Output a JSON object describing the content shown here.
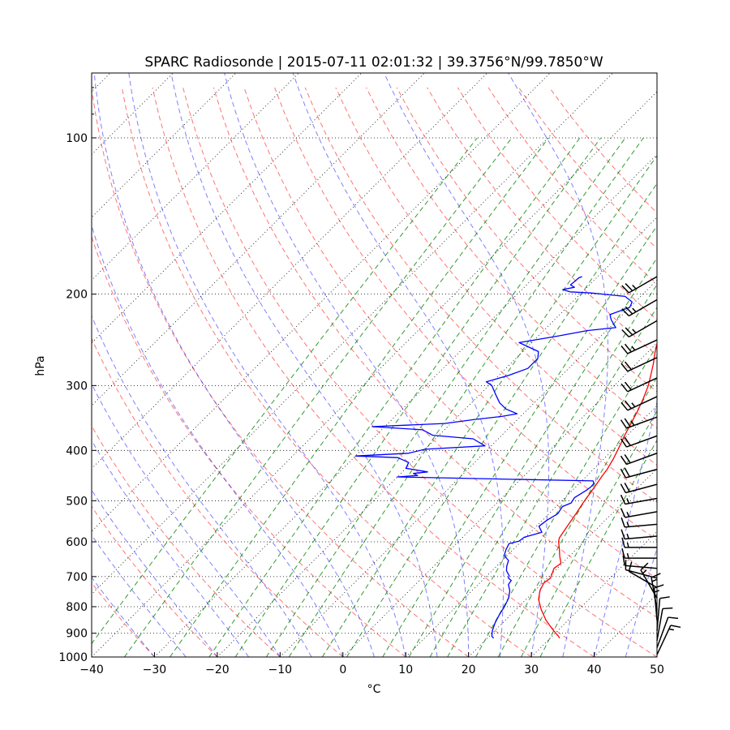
{
  "chart_data": {
    "type": "skew-t",
    "title": "SPARC Radiosonde | 2015-07-11 02:01:32 | 39.3756°N/99.7850°W",
    "xlabel": "°C",
    "ylabel": "hPa",
    "xlim": [
      -40,
      50
    ],
    "ylim_hpa": [
      1000,
      75
    ],
    "x_ticks": [
      "−40",
      "−30",
      "−20",
      "−10",
      "0",
      "10",
      "20",
      "30",
      "40",
      "50"
    ],
    "x_tick_values": [
      -40,
      -30,
      -20,
      -10,
      0,
      10,
      20,
      30,
      40,
      50
    ],
    "y_ticks": [
      "100",
      "200",
      "300",
      "400",
      "500",
      "600",
      "700",
      "800",
      "900",
      "1000"
    ],
    "y_tick_values": [
      100,
      200,
      300,
      400,
      500,
      600,
      700,
      800,
      900,
      1000
    ],
    "grid": "dotted isobars and skewed isotherms",
    "background_lines": {
      "dry_adiabats": "red dashed",
      "moist_adiabats": "blue dashed",
      "mixing_ratio": "green dashed"
    },
    "series": [
      {
        "name": "temperature",
        "color": "#ff0000",
        "points": [
          [
            31.5,
            920
          ],
          [
            31.0,
            912
          ],
          [
            29.0,
            885
          ],
          [
            26.5,
            850
          ],
          [
            24.0,
            810
          ],
          [
            22.0,
            775
          ],
          [
            20.8,
            745
          ],
          [
            20.2,
            720
          ],
          [
            20.5,
            705
          ],
          [
            20.0,
            690
          ],
          [
            19.5,
            675
          ],
          [
            19.8,
            660
          ],
          [
            18.5,
            640
          ],
          [
            17.3,
            620
          ],
          [
            16.0,
            600
          ],
          [
            15.5,
            590
          ],
          [
            15.2,
            575
          ],
          [
            14.8,
            555
          ],
          [
            14.3,
            530
          ],
          [
            13.7,
            505
          ],
          [
            13.2,
            480
          ],
          [
            12.8,
            462
          ],
          [
            12.5,
            450
          ],
          [
            12.2,
            435
          ],
          [
            11.5,
            415
          ],
          [
            10.6,
            395
          ],
          [
            9.6,
            375
          ],
          [
            8.7,
            355
          ],
          [
            7.7,
            335
          ],
          [
            6.7,
            318
          ],
          [
            5.4,
            300
          ],
          [
            4.0,
            285
          ],
          [
            2.7,
            272
          ],
          [
            1.3,
            260
          ],
          [
            0.0,
            248
          ],
          [
            -1.0,
            238
          ],
          [
            -1.5,
            230
          ],
          [
            -2.2,
            222
          ],
          [
            -3.2,
            215
          ],
          [
            -3.8,
            208
          ],
          [
            -4.5,
            202
          ],
          [
            -5.0,
            196
          ],
          [
            -5.8,
            192
          ],
          [
            -5.9,
            187
          ],
          [
            -6.3,
            185
          ]
        ]
      },
      {
        "name": "dewpoint",
        "color": "#0000ff",
        "points": [
          [
            21.0,
            920
          ],
          [
            20.4,
            912
          ],
          [
            19.6,
            890
          ],
          [
            18.8,
            860
          ],
          [
            18.2,
            830
          ],
          [
            17.7,
            800
          ],
          [
            17.0,
            770
          ],
          [
            16.0,
            745
          ],
          [
            14.8,
            725
          ],
          [
            14.6,
            712
          ],
          [
            13.8,
            705
          ],
          [
            13.5,
            697
          ],
          [
            12.3,
            682
          ],
          [
            11.6,
            668
          ],
          [
            11.0,
            652
          ],
          [
            9.5,
            637
          ],
          [
            8.9,
            622
          ],
          [
            8.4,
            605
          ],
          [
            9.6,
            598
          ],
          [
            9.8,
            588
          ],
          [
            11.8,
            575
          ],
          [
            10.4,
            560
          ],
          [
            10.7,
            545
          ],
          [
            11.4,
            530
          ],
          [
            11.0,
            513
          ],
          [
            11.8,
            505
          ],
          [
            11.5,
            493
          ],
          [
            12.2,
            478
          ],
          [
            12.4,
            470
          ],
          [
            12.3,
            463
          ],
          [
            11.8,
            458
          ],
          [
            -20.0,
            450
          ],
          [
            -17.0,
            447
          ],
          [
            -18.0,
            443
          ],
          [
            -16.0,
            440
          ],
          [
            -20.0,
            433
          ],
          [
            -20.5,
            422
          ],
          [
            -23.0,
            413
          ],
          [
            -30.0,
            410
          ],
          [
            -22.0,
            405
          ],
          [
            -20.0,
            398
          ],
          [
            -11.0,
            392
          ],
          [
            -14.0,
            380
          ],
          [
            -21.0,
            374
          ],
          [
            -23.5,
            365
          ],
          [
            -32.0,
            360
          ],
          [
            -21.0,
            355
          ],
          [
            -17.0,
            349
          ],
          [
            -13.0,
            344
          ],
          [
            -11.0,
            340
          ],
          [
            -13.5,
            333
          ],
          [
            -15.5,
            324
          ],
          [
            -17.5,
            312
          ],
          [
            -19.5,
            300
          ],
          [
            -21.0,
            295
          ],
          [
            -18.5,
            287
          ],
          [
            -16.5,
            278
          ],
          [
            -16.5,
            266
          ],
          [
            -17.5,
            258
          ],
          [
            -22.0,
            248
          ],
          [
            -17.0,
            241
          ],
          [
            -13.0,
            235
          ],
          [
            -9.0,
            232
          ],
          [
            -10.0,
            228
          ],
          [
            -11.0,
            224
          ],
          [
            -12.0,
            219
          ],
          [
            -10.0,
            212
          ],
          [
            -10.5,
            207
          ],
          [
            -12.5,
            202
          ],
          [
            -18.5,
            199
          ],
          [
            -22.0,
            198
          ],
          [
            -23.5,
            196
          ],
          [
            -22.0,
            194
          ],
          [
            -23.0,
            192
          ],
          [
            -22.8,
            186
          ],
          [
            -22.5,
            185
          ]
        ]
      }
    ],
    "wind_barbs": [
      {
        "p": 185,
        "kt": 25,
        "dir": 240
      },
      {
        "p": 205,
        "kt": 25,
        "dir": 240
      },
      {
        "p": 225,
        "kt": 25,
        "dir": 240
      },
      {
        "p": 245,
        "kt": 25,
        "dir": 245
      },
      {
        "p": 265,
        "kt": 20,
        "dir": 245
      },
      {
        "p": 290,
        "kt": 20,
        "dir": 245
      },
      {
        "p": 315,
        "kt": 25,
        "dir": 245
      },
      {
        "p": 345,
        "kt": 25,
        "dir": 250
      },
      {
        "p": 375,
        "kt": 20,
        "dir": 250
      },
      {
        "p": 405,
        "kt": 20,
        "dir": 250
      },
      {
        "p": 435,
        "kt": 20,
        "dir": 255
      },
      {
        "p": 465,
        "kt": 20,
        "dir": 255
      },
      {
        "p": 495,
        "kt": 15,
        "dir": 260
      },
      {
        "p": 525,
        "kt": 15,
        "dir": 260
      },
      {
        "p": 555,
        "kt": 15,
        "dir": 265
      },
      {
        "p": 585,
        "kt": 15,
        "dir": 265
      },
      {
        "p": 615,
        "kt": 15,
        "dir": 270
      },
      {
        "p": 645,
        "kt": 15,
        "dir": 270
      },
      {
        "p": 675,
        "kt": 10,
        "dir": 275
      },
      {
        "p": 705,
        "kt": 10,
        "dir": 285
      },
      {
        "p": 735,
        "kt": 10,
        "dir": 300
      },
      {
        "p": 770,
        "kt": 15,
        "dir": 330
      },
      {
        "p": 810,
        "kt": 15,
        "dir": 350
      },
      {
        "p": 850,
        "kt": 15,
        "dir": 355
      },
      {
        "p": 890,
        "kt": 10,
        "dir": 5
      },
      {
        "p": 930,
        "kt": 10,
        "dir": 10
      },
      {
        "p": 960,
        "kt": 10,
        "dir": 20
      },
      {
        "p": 990,
        "kt": 15,
        "dir": 25
      }
    ]
  }
}
